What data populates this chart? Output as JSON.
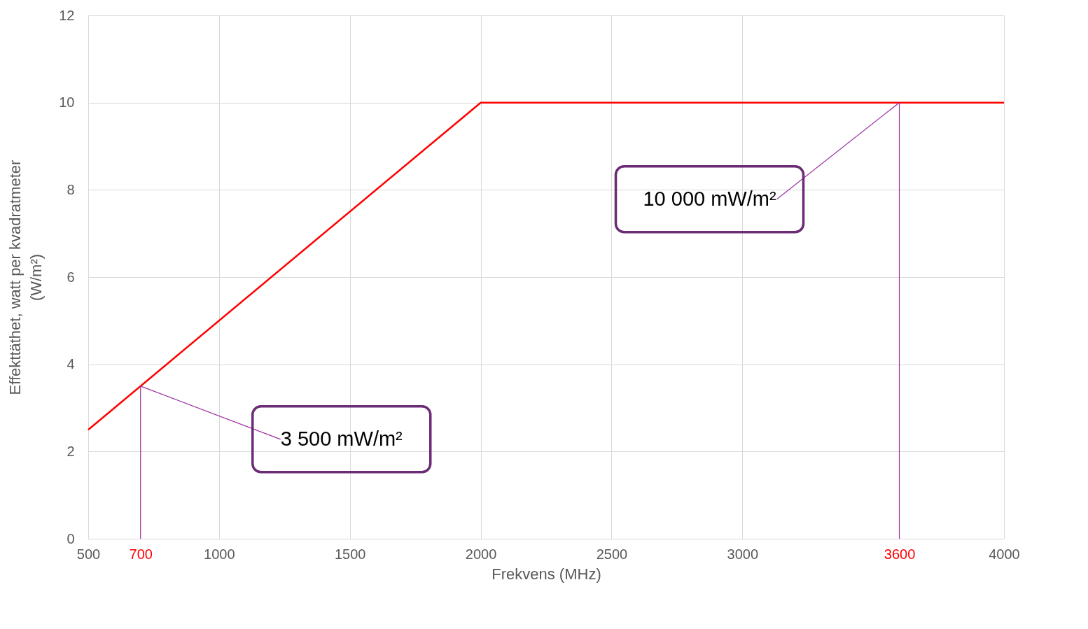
{
  "chart_data": {
    "type": "line",
    "xlabel": "Frekvens  (MHz)",
    "ylabel": "Effekttäthet,  watt per kvadratmeter (W/m²)",
    "x": [
      500,
      2000,
      4000
    ],
    "series": [
      {
        "color": "#ff0000",
        "values": [
          2.5,
          10,
          10
        ]
      }
    ],
    "xlim": [
      500,
      4000
    ],
    "xticks": [
      500,
      700,
      1000,
      1500,
      2000,
      2500,
      3000,
      3600,
      4000
    ],
    "ylim": [
      0,
      12
    ],
    "yticks": [
      0,
      2,
      4,
      6,
      8,
      10,
      12
    ],
    "grid": true,
    "marker": "none",
    "line_style": "solid",
    "ref_lines": [
      {
        "axis": "x",
        "value": 700,
        "color": "#9b30a0"
      },
      {
        "axis": "x",
        "value": 3600,
        "color": "#9b30a0"
      }
    ],
    "annotations": [
      {
        "text": "3 500 mW/m²",
        "x": 700,
        "y": 3.5
      },
      {
        "text": "10 000 mW/m²",
        "x": 3600,
        "y": 10
      }
    ]
  }
}
